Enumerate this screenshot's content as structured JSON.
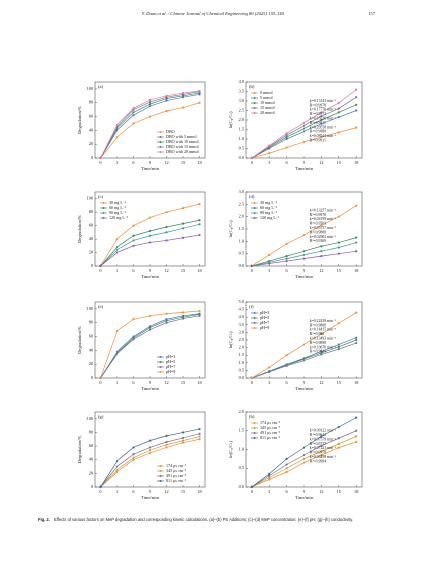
{
  "header": {
    "running": "Y. Duan et al. / Chinese Journal of Chemical Engineering 80 (2025) 155–165",
    "page": "157"
  },
  "chart_data": [
    {
      "type": "line",
      "panel": "(a)",
      "xlabel": "Time/min",
      "ylabel": "Degradation/%",
      "legend": "lower right",
      "xlim": [
        -1,
        19
      ],
      "xticks": [
        0,
        3,
        6,
        9,
        12,
        15,
        18
      ],
      "ylim": [
        0,
        110
      ],
      "yticks": [
        0,
        20,
        40,
        60,
        80,
        100
      ],
      "x": [
        0,
        3,
        6,
        9,
        12,
        15,
        18
      ],
      "series": [
        {
          "name": "DBO",
          "color": "#f0903a",
          "values": [
            0,
            30,
            50,
            60,
            68,
            73,
            80
          ]
        },
        {
          "name": "DBO with 5 mmol",
          "color": "#4a7bbf",
          "values": [
            0,
            40,
            62,
            75,
            83,
            88,
            92
          ]
        },
        {
          "name": "DBO with 10 mmol",
          "color": "#3a8a5a",
          "values": [
            0,
            43,
            66,
            78,
            86,
            90,
            94
          ]
        },
        {
          "name": "DBO with 15 mmol",
          "color": "#7a6fa0",
          "values": [
            0,
            45,
            70,
            81,
            88,
            92,
            96
          ]
        },
        {
          "name": "DBO with 20 mmol",
          "color": "#e07a9a",
          "values": [
            0,
            48,
            72,
            84,
            90,
            94,
            97
          ]
        }
      ]
    },
    {
      "type": "line",
      "panel": "(b)",
      "xlabel": "Time/min",
      "ylabel": "ln(C₀/Cₜ)",
      "legend": "upper left",
      "xlim": [
        -1,
        19
      ],
      "xticks": [
        0,
        3,
        6,
        9,
        12,
        15,
        18
      ],
      "ylim": [
        0,
        4
      ],
      "yticks": [
        {
          "value": 0,
          "label": "0.0"
        },
        {
          "value": 0.5,
          "label": "0.5"
        },
        {
          "value": 1,
          "label": "1.0"
        },
        {
          "value": 1.5,
          "label": "1.5"
        },
        {
          "value": 2,
          "label": "2.0"
        },
        {
          "value": 2.5,
          "label": "2.5"
        },
        {
          "value": 3,
          "label": "3.0"
        },
        {
          "value": 3.5,
          "label": "3.5"
        },
        {
          "value": 4,
          "label": "4.0"
        }
      ],
      "x": [
        0,
        3,
        6,
        9,
        12,
        15,
        18
      ],
      "series": [
        {
          "name": "0 mmol",
          "color": "#f0903a",
          "values": [
            0,
            0.25,
            0.55,
            0.85,
            1.1,
            1.35,
            1.6
          ]
        },
        {
          "name": "5 mmol",
          "color": "#4a7bbf",
          "values": [
            0,
            0.5,
            1,
            1.4,
            1.8,
            2.15,
            2.5
          ]
        },
        {
          "name": "10 mmol",
          "color": "#3a8a5a",
          "values": [
            0,
            0.55,
            1.1,
            1.55,
            2,
            2.4,
            2.8
          ]
        },
        {
          "name": "15 mmol",
          "color": "#7a6fa0",
          "values": [
            0,
            0.6,
            1.2,
            1.7,
            2.2,
            2.6,
            3.2
          ]
        },
        {
          "name": "20 mmol",
          "color": "#e07a9a",
          "values": [
            0,
            0.65,
            1.3,
            1.85,
            2.4,
            2.9,
            3.6
          ]
        }
      ],
      "annotations": [
        "k=0.13143 min⁻¹",
        "R²=0.9978",
        "k=0.17770 min⁻¹",
        "R²=0.9972",
        "k=0.15526 min⁻¹",
        "R²=0.9911",
        "k=0.20558 min⁻¹",
        "R²=0.9980",
        "k=0.08544 min⁻¹",
        "R²=0.9911"
      ]
    },
    {
      "type": "line",
      "panel": "(c)",
      "xlabel": "Time/min",
      "ylabel": "Degradation/%",
      "legend": "upper left",
      "xlim": [
        -1,
        19
      ],
      "xticks": [
        0,
        3,
        6,
        9,
        12,
        15,
        18
      ],
      "ylim": [
        0,
        110
      ],
      "yticks": [
        0,
        20,
        40,
        60,
        80,
        100
      ],
      "x": [
        0,
        3,
        6,
        9,
        12,
        15,
        18
      ],
      "series": [
        {
          "name": "30 mg L⁻¹",
          "color": "#f0903a",
          "values": [
            0,
            40,
            60,
            72,
            80,
            86,
            92
          ]
        },
        {
          "name": "60 mg L⁻¹",
          "color": "#3a8a5a",
          "values": [
            0,
            28,
            45,
            52,
            58,
            63,
            68
          ]
        },
        {
          "name": "90 mg L⁻¹",
          "color": "#3a9aa0",
          "values": [
            0,
            24,
            38,
            45,
            50,
            56,
            62
          ]
        },
        {
          "name": "120 mg L⁻¹",
          "color": "#8a5aa8",
          "values": [
            0,
            20,
            30,
            35,
            38,
            42,
            46
          ]
        }
      ]
    },
    {
      "type": "line",
      "panel": "(d)",
      "xlabel": "Time/min",
      "ylabel": "ln(C₀/Cₜ)",
      "legend": "upper left",
      "xlim": [
        -1,
        19
      ],
      "xticks": [
        0,
        3,
        6,
        9,
        12,
        15,
        18
      ],
      "ylim": [
        0,
        3
      ],
      "yticks": [
        {
          "value": 0,
          "label": "0.0"
        },
        {
          "value": 0.5,
          "label": "0.5"
        },
        {
          "value": 1,
          "label": "1.0"
        },
        {
          "value": 1.5,
          "label": "1.5"
        },
        {
          "value": 2,
          "label": "2.0"
        },
        {
          "value": 2.5,
          "label": "2.5"
        },
        {
          "value": 3,
          "label": "3.0"
        }
      ],
      "x": [
        0,
        3,
        6,
        9,
        12,
        15,
        18
      ],
      "series": [
        {
          "name": "30 mg L⁻¹",
          "color": "#f0903a",
          "values": [
            0,
            0.45,
            0.9,
            1.25,
            1.65,
            2,
            2.45
          ]
        },
        {
          "name": "60 mg L⁻¹",
          "color": "#3a8a5a",
          "values": [
            0,
            0.2,
            0.4,
            0.6,
            0.8,
            0.95,
            1.15
          ]
        },
        {
          "name": "90 mg L⁻¹",
          "color": "#3a9aa0",
          "values": [
            0,
            0.15,
            0.3,
            0.45,
            0.6,
            0.75,
            0.95
          ]
        },
        {
          "name": "120 mg L⁻¹",
          "color": "#8a5aa8",
          "values": [
            0,
            0.1,
            0.2,
            0.3,
            0.4,
            0.5,
            0.6
          ]
        }
      ],
      "annotations": [
        "k=0.13257 min⁻¹",
        "R²=0.9978",
        "k=0.04199 min⁻¹",
        "R²=0.9503",
        "k=0.05757 min⁻¹",
        "R²=0.9808",
        "k=0.02902 min⁻¹",
        "R²=0.9369"
      ]
    },
    {
      "type": "line",
      "panel": "(e)",
      "xlabel": "Time/min",
      "ylabel": "Degradation/%",
      "legend": "lower right",
      "xlim": [
        -1,
        19
      ],
      "xticks": [
        0,
        3,
        6,
        9,
        12,
        15,
        18
      ],
      "ylim": [
        0,
        110
      ],
      "yticks": [
        0,
        20,
        40,
        60,
        80,
        100
      ],
      "x": [
        0,
        3,
        6,
        9,
        12,
        15,
        18
      ],
      "series": [
        {
          "name": "pH=3",
          "color": "#4a7bbf",
          "values": [
            0,
            38,
            60,
            75,
            85,
            90,
            93
          ]
        },
        {
          "name": "pH=5",
          "color": "#3a8a5a",
          "values": [
            0,
            36,
            58,
            73,
            83,
            88,
            92
          ]
        },
        {
          "name": "pH=7",
          "color": "#7a6fa0",
          "values": [
            0,
            35,
            56,
            70,
            80,
            86,
            90
          ]
        },
        {
          "name": "pH=9",
          "color": "#f0903a",
          "values": [
            0,
            68,
            85,
            90,
            93,
            95,
            97
          ]
        }
      ]
    },
    {
      "type": "line",
      "panel": "(f)",
      "xlabel": "Time/min",
      "ylabel": "ln(C₀/Cₜ)",
      "legend": "upper left",
      "xlim": [
        -1,
        19
      ],
      "xticks": [
        0,
        3,
        6,
        9,
        12,
        15,
        18
      ],
      "ylim": [
        0,
        5
      ],
      "yticks": [
        {
          "value": 0,
          "label": "0.0"
        },
        {
          "value": 0.5,
          "label": "0.5"
        },
        {
          "value": 1,
          "label": "1.0"
        },
        {
          "value": 1.5,
          "label": "1.5"
        },
        {
          "value": 2,
          "label": "2.0"
        },
        {
          "value": 2.5,
          "label": "2.5"
        },
        {
          "value": 3,
          "label": "3.0"
        },
        {
          "value": 3.5,
          "label": "3.5"
        },
        {
          "value": 4,
          "label": "4.0"
        },
        {
          "value": 4.5,
          "label": "4.5"
        },
        {
          "value": 5,
          "label": "5.0"
        }
      ],
      "x": [
        0,
        3,
        6,
        9,
        12,
        15,
        18
      ],
      "series": [
        {
          "name": "pH=3",
          "color": "#4a7bbf",
          "values": [
            0,
            0.45,
            0.9,
            1.3,
            1.75,
            2.2,
            2.65
          ]
        },
        {
          "name": "pH=5",
          "color": "#3a8a5a",
          "values": [
            0,
            0.42,
            0.85,
            1.25,
            1.65,
            2.05,
            2.5
          ]
        },
        {
          "name": "pH=7",
          "color": "#7a6fa0",
          "values": [
            0,
            0.4,
            0.8,
            1.15,
            1.55,
            1.9,
            2.3
          ]
        },
        {
          "name": "pH=9",
          "color": "#f0903a",
          "values": [
            0,
            0.7,
            1.5,
            2.2,
            2.9,
            3.6,
            4.3
          ]
        }
      ],
      "annotations": [
        "k=0.22439 min⁻¹",
        "R²=0.9868",
        "k=0.14415 min⁻¹",
        "R²=0.986",
        "k=0.13493 min⁻¹",
        "R²=0.9898",
        "k=0.10670 min⁻¹",
        "R²=0.9944"
      ]
    },
    {
      "type": "line",
      "panel": "(g)",
      "xlabel": "Time/min",
      "ylabel": "Degradation/%",
      "legend": "lower right",
      "xlim": [
        -1,
        19
      ],
      "xticks": [
        0,
        3,
        6,
        9,
        12,
        15,
        18
      ],
      "ylim": [
        0,
        110
      ],
      "yticks": [
        0,
        20,
        40,
        60,
        80,
        100
      ],
      "x": [
        0,
        3,
        6,
        9,
        12,
        15,
        18
      ],
      "series": [
        {
          "name": "174 μs cm⁻¹",
          "color": "#f0903a",
          "values": [
            0,
            22,
            40,
            50,
            58,
            65,
            70
          ]
        },
        {
          "name": "345 μs cm⁻¹",
          "color": "#c8a030",
          "values": [
            0,
            25,
            43,
            54,
            62,
            68,
            74
          ]
        },
        {
          "name": "491 μs cm⁻¹",
          "color": "#7a6fa0",
          "values": [
            0,
            30,
            48,
            58,
            66,
            72,
            78
          ]
        },
        {
          "name": "811 μs cm⁻¹",
          "color": "#3a6a8a",
          "values": [
            0,
            38,
            58,
            68,
            75,
            80,
            85
          ]
        }
      ]
    },
    {
      "type": "line",
      "panel": "(h)",
      "xlabel": "Time/min",
      "ylabel": "ln(C₀/Cₜ)",
      "legend": "upper left",
      "xlim": [
        -1,
        19
      ],
      "xticks": [
        0,
        3,
        6,
        9,
        12,
        15,
        18
      ],
      "ylim": [
        0,
        2
      ],
      "yticks": [
        {
          "value": 0,
          "label": "0.0"
        },
        {
          "value": 0.5,
          "label": "0.5"
        },
        {
          "value": 1,
          "label": "1.0"
        },
        {
          "value": 1.5,
          "label": "1.5"
        },
        {
          "value": 2,
          "label": "2.0"
        }
      ],
      "x": [
        0,
        3,
        6,
        9,
        12,
        15,
        18
      ],
      "series": [
        {
          "name": "174 μs cm⁻¹",
          "color": "#f0903a",
          "values": [
            0,
            0.2,
            0.4,
            0.65,
            0.85,
            1.05,
            1.2
          ]
        },
        {
          "name": "345 μs cm⁻¹",
          "color": "#c8a030",
          "values": [
            0,
            0.25,
            0.5,
            0.75,
            0.95,
            1.15,
            1.35
          ]
        },
        {
          "name": "491 μs cm⁻¹",
          "color": "#7a6fa0",
          "values": [
            0,
            0.3,
            0.6,
            0.85,
            1.1,
            1.3,
            1.5
          ]
        },
        {
          "name": "811 μs cm⁻¹",
          "color": "#3a6a8a",
          "values": [
            0,
            0.35,
            0.75,
            1.05,
            1.35,
            1.6,
            1.85
          ]
        }
      ],
      "annotations": [
        "k=0.09122 min⁻¹",
        "R²=0.9642",
        "k=0.07579 min⁻¹",
        "R²=0.9737",
        "k=0.07221 min⁻¹",
        "R²=0.9978",
        "k=0.06498 min⁻¹",
        "R²=0.9994"
      ]
    }
  ],
  "caption": {
    "label": "Fig. 2.",
    "text": "Effects of various factors on MeP degradation and corresponding kinetic calculations. (a)–(b) PS Additions; (c)–(d) MeP concentration; (e)–(f) pH; (g)–(h) conductivity."
  }
}
